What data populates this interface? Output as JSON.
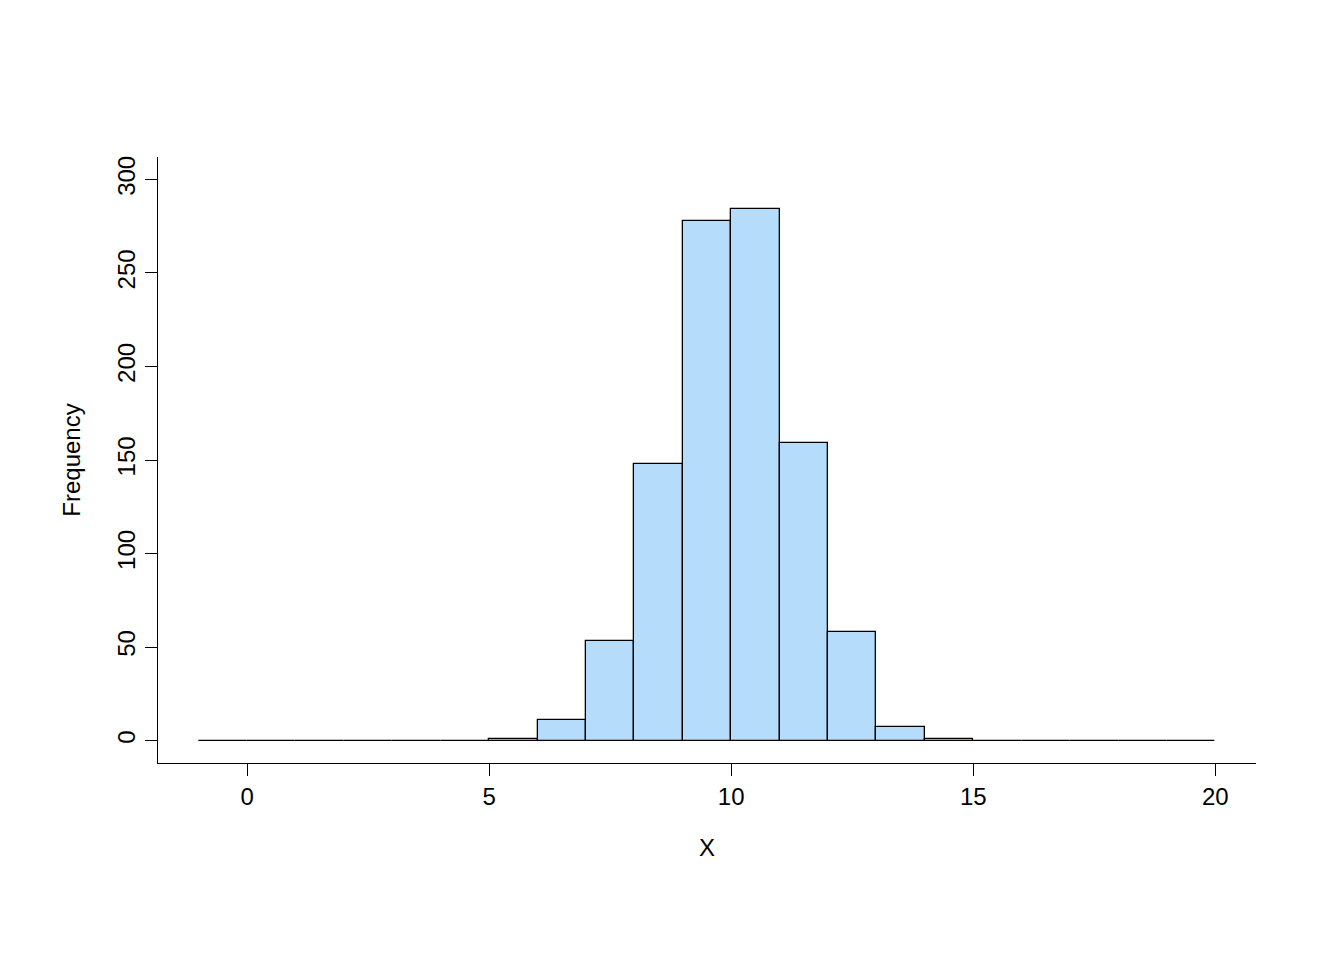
{
  "chart_data": {
    "type": "histogram",
    "x_label": "X",
    "y_label": "Frequency",
    "bins": [
      -1,
      0,
      1,
      2,
      3,
      4,
      5,
      6,
      7,
      8,
      9,
      10,
      11,
      12,
      13,
      14,
      15,
      16,
      17,
      18,
      19,
      20
    ],
    "values": [
      0,
      0,
      0,
      0,
      0,
      0,
      1,
      11,
      53,
      148,
      278,
      284,
      159,
      58,
      7,
      1,
      0,
      0,
      0,
      0,
      0
    ],
    "color": "#b5dcfa",
    "xlim": [
      -1.84,
      20.84
    ],
    "xticks": [
      0,
      5,
      10,
      15,
      20
    ],
    "ylim": [
      -12,
      312
    ],
    "yticks": [
      0,
      50,
      100,
      150,
      200,
      250,
      300
    ],
    "grid": false
  }
}
